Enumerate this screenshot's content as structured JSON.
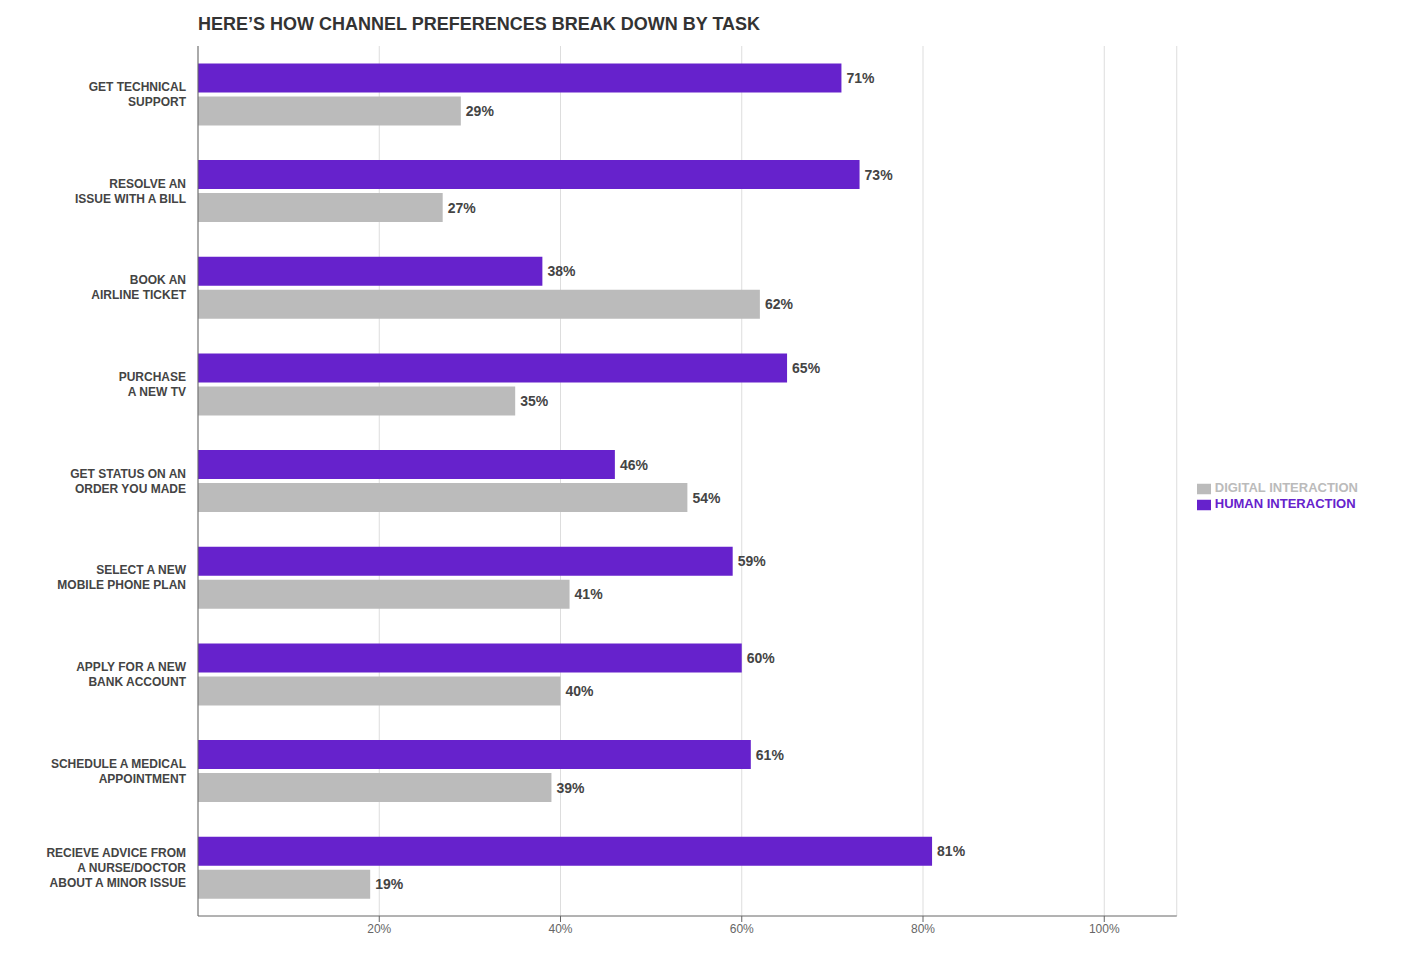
{
  "chart_data": {
    "type": "bar",
    "orientation": "horizontal",
    "title": "HERE’S HOW CHANNEL PREFERENCES BREAK DOWN BY TASK",
    "categories": [
      "RECIEVE ADVICE FROM\nA NURSE/DOCTOR\nABOUT A MINOR ISSUE",
      "SCHEDULE A MEDICAL\nAPPOINTMENT",
      "APPLY FOR A NEW\nBANK ACCOUNT",
      "SELECT A NEW\nMOBILE PHONE PLAN",
      "GET STATUS ON AN\nORDER YOU MADE",
      "PURCHASE\nA NEW TV",
      "BOOK AN\nAIRLINE TICKET",
      "RESOLVE AN\nISSUE WITH A BILL",
      "GET TECHNICAL\nSUPPORT"
    ],
    "series": [
      {
        "name": "HUMAN INTERACTION",
        "color": "#6622CC",
        "values": [
          81,
          61,
          60,
          59,
          46,
          65,
          38,
          73,
          71
        ],
        "value_labels": [
          "81%",
          "61%",
          "60%",
          "59%",
          "46%",
          "65%",
          "38%",
          "73%",
          "71%"
        ]
      },
      {
        "name": "DIGITAL INTERACTION",
        "color": "#BBBBBB",
        "values": [
          19,
          39,
          40,
          41,
          54,
          35,
          62,
          27,
          29
        ],
        "value_labels": [
          "19%",
          "39%",
          "40%",
          "41%",
          "54%",
          "35%",
          "62%",
          "27%",
          "29%"
        ]
      }
    ],
    "xlim": [
      0,
      108
    ],
    "xticks": [
      {
        "value": 20,
        "label": "20%"
      },
      {
        "value": 40,
        "label": "40%"
      },
      {
        "value": 60,
        "label": "60%"
      },
      {
        "value": 80,
        "label": "80%"
      },
      {
        "value": 100,
        "label": "100%"
      }
    ],
    "grid": true,
    "legend": "right",
    "data_labels": true
  }
}
